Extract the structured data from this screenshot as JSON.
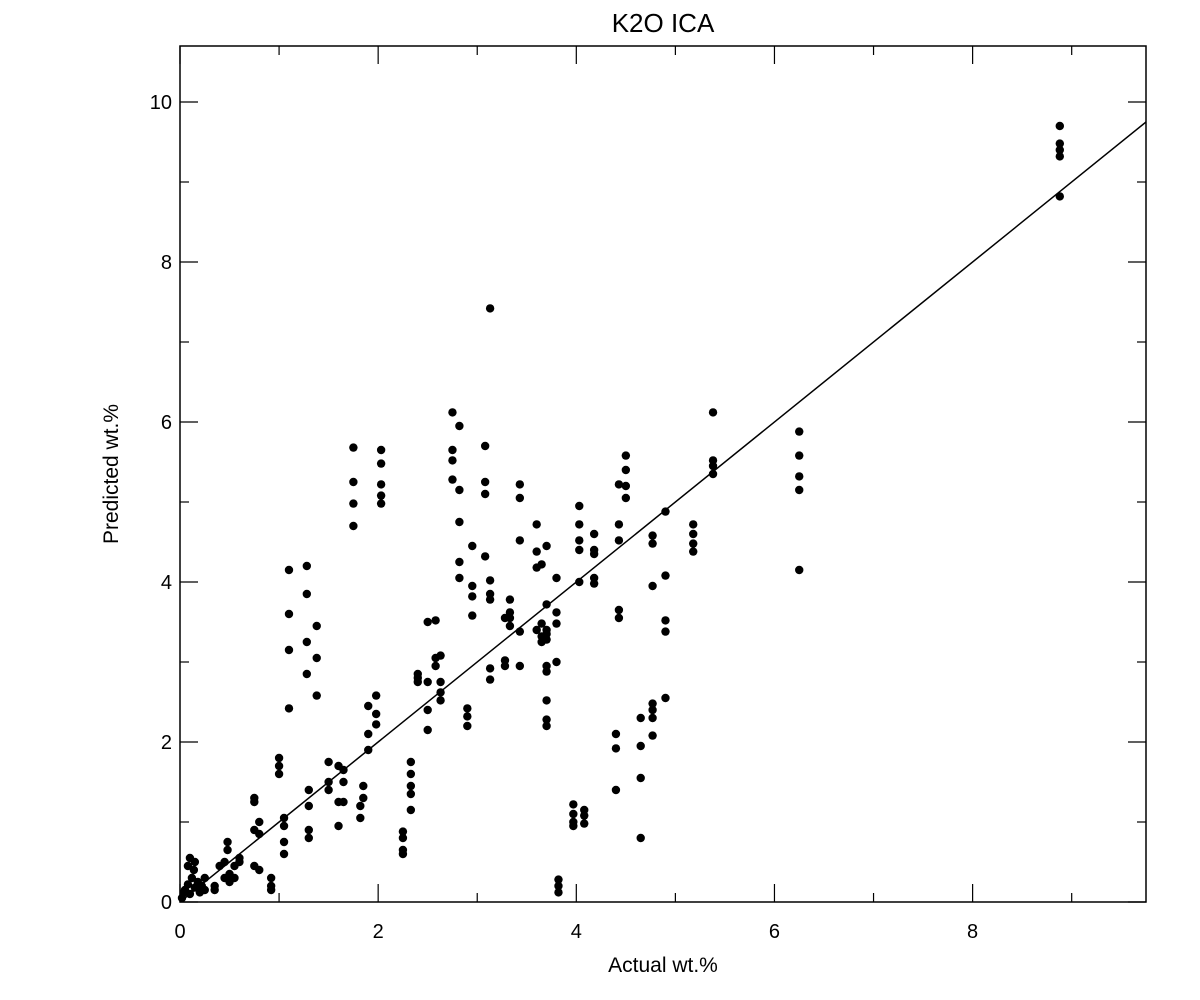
{
  "chart_data": {
    "type": "scatter",
    "title": "K2O ICA",
    "xlabel": "Actual wt.%",
    "ylabel": "Predicted wt.%",
    "xlim": [
      0,
      9.75
    ],
    "ylim": [
      0,
      10.7
    ],
    "xticks": [
      0,
      2,
      4,
      6,
      8
    ],
    "yticks": [
      0,
      2,
      4,
      6,
      8,
      10
    ],
    "grid": false,
    "reference_line": {
      "from": [
        0,
        0
      ],
      "to": [
        9.75,
        9.75
      ]
    },
    "points": [
      [
        0.02,
        0.05
      ],
      [
        0.04,
        0.12
      ],
      [
        0.05,
        0.15
      ],
      [
        0.08,
        0.22
      ],
      [
        0.08,
        0.45
      ],
      [
        0.1,
        0.55
      ],
      [
        0.1,
        0.1
      ],
      [
        0.12,
        0.3
      ],
      [
        0.14,
        0.4
      ],
      [
        0.15,
        0.18
      ],
      [
        0.15,
        0.5
      ],
      [
        0.18,
        0.25
      ],
      [
        0.2,
        0.12
      ],
      [
        0.22,
        0.2
      ],
      [
        0.25,
        0.3
      ],
      [
        0.25,
        0.15
      ],
      [
        0.35,
        0.15
      ],
      [
        0.35,
        0.2
      ],
      [
        0.4,
        0.45
      ],
      [
        0.45,
        0.5
      ],
      [
        0.45,
        0.3
      ],
      [
        0.48,
        0.75
      ],
      [
        0.48,
        0.65
      ],
      [
        0.5,
        0.35
      ],
      [
        0.5,
        0.25
      ],
      [
        0.55,
        0.45
      ],
      [
        0.55,
        0.3
      ],
      [
        0.6,
        0.5
      ],
      [
        0.6,
        0.55
      ],
      [
        0.75,
        1.3
      ],
      [
        0.75,
        1.25
      ],
      [
        0.75,
        0.9
      ],
      [
        0.75,
        0.45
      ],
      [
        0.8,
        1.0
      ],
      [
        0.8,
        0.85
      ],
      [
        0.8,
        0.4
      ],
      [
        0.92,
        0.3
      ],
      [
        0.92,
        0.2
      ],
      [
        0.92,
        0.15
      ],
      [
        1.0,
        1.8
      ],
      [
        1.0,
        1.7
      ],
      [
        1.0,
        1.6
      ],
      [
        1.05,
        1.05
      ],
      [
        1.05,
        0.95
      ],
      [
        1.05,
        0.75
      ],
      [
        1.05,
        0.6
      ],
      [
        1.1,
        4.15
      ],
      [
        1.1,
        3.6
      ],
      [
        1.1,
        3.15
      ],
      [
        1.1,
        2.42
      ],
      [
        1.28,
        4.2
      ],
      [
        1.28,
        3.85
      ],
      [
        1.28,
        3.25
      ],
      [
        1.28,
        2.85
      ],
      [
        1.3,
        1.4
      ],
      [
        1.3,
        1.2
      ],
      [
        1.3,
        0.9
      ],
      [
        1.3,
        0.8
      ],
      [
        1.38,
        3.45
      ],
      [
        1.38,
        3.05
      ],
      [
        1.38,
        2.58
      ],
      [
        1.5,
        1.75
      ],
      [
        1.5,
        1.5
      ],
      [
        1.5,
        1.4
      ],
      [
        1.6,
        1.7
      ],
      [
        1.6,
        1.25
      ],
      [
        1.6,
        0.95
      ],
      [
        1.65,
        1.65
      ],
      [
        1.65,
        1.5
      ],
      [
        1.65,
        1.25
      ],
      [
        1.75,
        5.68
      ],
      [
        1.75,
        5.25
      ],
      [
        1.75,
        4.98
      ],
      [
        1.75,
        4.7
      ],
      [
        1.82,
        1.2
      ],
      [
        1.82,
        1.05
      ],
      [
        1.85,
        1.45
      ],
      [
        1.85,
        1.3
      ],
      [
        1.9,
        2.45
      ],
      [
        1.9,
        2.1
      ],
      [
        1.9,
        1.9
      ],
      [
        1.98,
        2.58
      ],
      [
        1.98,
        2.35
      ],
      [
        1.98,
        2.22
      ],
      [
        2.03,
        5.65
      ],
      [
        2.03,
        5.48
      ],
      [
        2.03,
        5.22
      ],
      [
        2.03,
        5.08
      ],
      [
        2.03,
        4.98
      ],
      [
        2.25,
        0.88
      ],
      [
        2.25,
        0.8
      ],
      [
        2.25,
        0.65
      ],
      [
        2.25,
        0.6
      ],
      [
        2.33,
        1.75
      ],
      [
        2.33,
        1.6
      ],
      [
        2.33,
        1.45
      ],
      [
        2.33,
        1.35
      ],
      [
        2.33,
        1.15
      ],
      [
        2.4,
        2.85
      ],
      [
        2.4,
        2.8
      ],
      [
        2.4,
        2.75
      ],
      [
        2.5,
        3.5
      ],
      [
        2.5,
        2.75
      ],
      [
        2.5,
        2.4
      ],
      [
        2.5,
        2.15
      ],
      [
        2.58,
        3.52
      ],
      [
        2.58,
        3.05
      ],
      [
        2.58,
        2.95
      ],
      [
        2.63,
        3.08
      ],
      [
        2.63,
        2.75
      ],
      [
        2.63,
        2.62
      ],
      [
        2.63,
        2.52
      ],
      [
        2.75,
        6.12
      ],
      [
        2.75,
        5.65
      ],
      [
        2.75,
        5.52
      ],
      [
        2.75,
        5.28
      ],
      [
        2.82,
        5.95
      ],
      [
        2.82,
        5.15
      ],
      [
        2.82,
        4.75
      ],
      [
        2.82,
        4.25
      ],
      [
        2.82,
        4.05
      ],
      [
        2.9,
        2.42
      ],
      [
        2.9,
        2.32
      ],
      [
        2.9,
        2.2
      ],
      [
        2.95,
        4.45
      ],
      [
        2.95,
        3.95
      ],
      [
        2.95,
        3.82
      ],
      [
        2.95,
        3.58
      ],
      [
        3.08,
        5.7
      ],
      [
        3.08,
        5.25
      ],
      [
        3.08,
        5.1
      ],
      [
        3.08,
        4.32
      ],
      [
        3.13,
        7.42
      ],
      [
        3.13,
        4.02
      ],
      [
        3.13,
        3.85
      ],
      [
        3.13,
        3.78
      ],
      [
        3.13,
        2.92
      ],
      [
        3.13,
        2.78
      ],
      [
        3.28,
        3.02
      ],
      [
        3.28,
        2.95
      ],
      [
        3.28,
        3.55
      ],
      [
        3.33,
        3.78
      ],
      [
        3.33,
        3.62
      ],
      [
        3.33,
        3.55
      ],
      [
        3.33,
        3.45
      ],
      [
        3.43,
        5.22
      ],
      [
        3.43,
        5.05
      ],
      [
        3.43,
        4.52
      ],
      [
        3.43,
        3.38
      ],
      [
        3.43,
        2.95
      ],
      [
        3.6,
        4.72
      ],
      [
        3.6,
        4.38
      ],
      [
        3.6,
        4.18
      ],
      [
        3.6,
        3.4
      ],
      [
        3.65,
        4.22
      ],
      [
        3.65,
        3.48
      ],
      [
        3.65,
        3.32
      ],
      [
        3.65,
        3.25
      ],
      [
        3.7,
        4.45
      ],
      [
        3.7,
        3.72
      ],
      [
        3.7,
        3.4
      ],
      [
        3.7,
        3.35
      ],
      [
        3.7,
        3.28
      ],
      [
        3.7,
        2.95
      ],
      [
        3.7,
        2.88
      ],
      [
        3.7,
        2.52
      ],
      [
        3.7,
        2.28
      ],
      [
        3.7,
        2.2
      ],
      [
        3.8,
        4.05
      ],
      [
        3.8,
        3.62
      ],
      [
        3.8,
        3.48
      ],
      [
        3.8,
        3.0
      ],
      [
        3.82,
        0.28
      ],
      [
        3.82,
        0.2
      ],
      [
        3.82,
        0.12
      ],
      [
        3.97,
        1.22
      ],
      [
        3.97,
        1.1
      ],
      [
        3.97,
        1.0
      ],
      [
        3.97,
        0.95
      ],
      [
        4.03,
        4.95
      ],
      [
        4.03,
        4.72
      ],
      [
        4.03,
        4.52
      ],
      [
        4.03,
        4.4
      ],
      [
        4.03,
        4.0
      ],
      [
        4.08,
        1.15
      ],
      [
        4.08,
        1.08
      ],
      [
        4.08,
        0.98
      ],
      [
        4.18,
        4.6
      ],
      [
        4.18,
        4.4
      ],
      [
        4.18,
        4.35
      ],
      [
        4.18,
        4.05
      ],
      [
        4.18,
        3.98
      ],
      [
        4.4,
        2.1
      ],
      [
        4.4,
        1.92
      ],
      [
        4.4,
        1.4
      ],
      [
        4.43,
        5.22
      ],
      [
        4.43,
        4.72
      ],
      [
        4.43,
        4.52
      ],
      [
        4.43,
        3.65
      ],
      [
        4.43,
        3.55
      ],
      [
        4.5,
        5.58
      ],
      [
        4.5,
        5.4
      ],
      [
        4.5,
        5.2
      ],
      [
        4.5,
        5.05
      ],
      [
        4.65,
        2.3
      ],
      [
        4.65,
        1.95
      ],
      [
        4.65,
        1.55
      ],
      [
        4.65,
        0.8
      ],
      [
        4.77,
        4.58
      ],
      [
        4.77,
        4.48
      ],
      [
        4.77,
        3.95
      ],
      [
        4.77,
        2.48
      ],
      [
        4.77,
        2.4
      ],
      [
        4.77,
        2.3
      ],
      [
        4.77,
        2.08
      ],
      [
        4.9,
        4.88
      ],
      [
        4.9,
        4.08
      ],
      [
        4.9,
        3.52
      ],
      [
        4.9,
        3.38
      ],
      [
        4.9,
        2.55
      ],
      [
        5.18,
        4.72
      ],
      [
        5.18,
        4.6
      ],
      [
        5.18,
        4.48
      ],
      [
        5.18,
        4.38
      ],
      [
        5.38,
        6.12
      ],
      [
        5.38,
        5.52
      ],
      [
        5.38,
        5.45
      ],
      [
        5.38,
        5.35
      ],
      [
        6.25,
        5.88
      ],
      [
        6.25,
        5.58
      ],
      [
        6.25,
        5.32
      ],
      [
        6.25,
        5.15
      ],
      [
        6.25,
        4.15
      ],
      [
        8.88,
        9.7
      ],
      [
        8.88,
        9.48
      ],
      [
        8.88,
        9.4
      ],
      [
        8.88,
        9.32
      ],
      [
        8.88,
        8.82
      ]
    ]
  }
}
